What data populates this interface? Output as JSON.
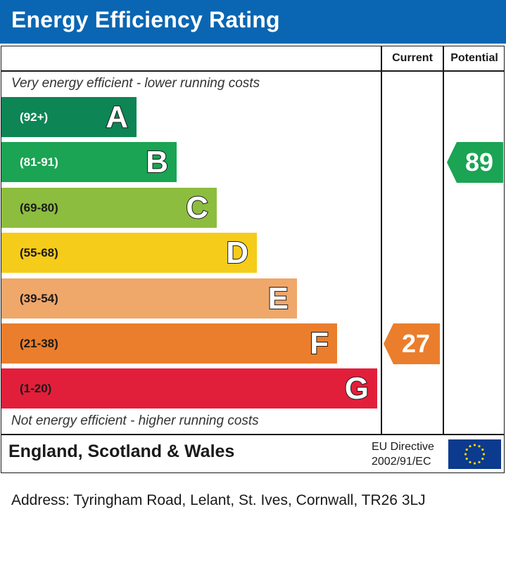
{
  "header": {
    "title": "Energy Efficiency Rating"
  },
  "columns": {
    "current": "Current",
    "potential": "Potential"
  },
  "notes": {
    "top": "Very energy efficient - lower running costs",
    "bottom": "Not energy efficient - higher running costs"
  },
  "chart_data": {
    "type": "bar",
    "categories": [
      "A",
      "B",
      "C",
      "D",
      "E",
      "F",
      "G"
    ],
    "bands": [
      {
        "letter": "A",
        "range": "(92+)",
        "color": "#0d8554",
        "text_color": "#ffffff"
      },
      {
        "letter": "B",
        "range": "(81-91)",
        "color": "#1aa453",
        "text_color": "#ffffff"
      },
      {
        "letter": "C",
        "range": "(69-80)",
        "color": "#8dbd3f",
        "text_color": "#1a1a1a"
      },
      {
        "letter": "D",
        "range": "(55-68)",
        "color": "#f6cc1a",
        "text_color": "#1a1a1a"
      },
      {
        "letter": "E",
        "range": "(39-54)",
        "color": "#f0a76a",
        "text_color": "#1a1a1a"
      },
      {
        "letter": "F",
        "range": "(21-38)",
        "color": "#ea7e2c",
        "text_color": "#1a1a1a"
      },
      {
        "letter": "G",
        "range": "(1-20)",
        "color": "#e21f3b",
        "text_color": "#1a1a1a"
      }
    ],
    "current": {
      "value": 27,
      "band": "F",
      "color": "#ea7e2c"
    },
    "potential": {
      "value": 89,
      "band": "B",
      "color": "#1aa453"
    }
  },
  "footer": {
    "region": "England, Scotland & Wales",
    "directive_line1": "EU Directive",
    "directive_line2": "2002/91/EC",
    "flag_icon": "eu-flag-icon"
  },
  "address": "Address: Tyringham Road, Lelant, St. Ives, Cornwall, TR26 3LJ"
}
